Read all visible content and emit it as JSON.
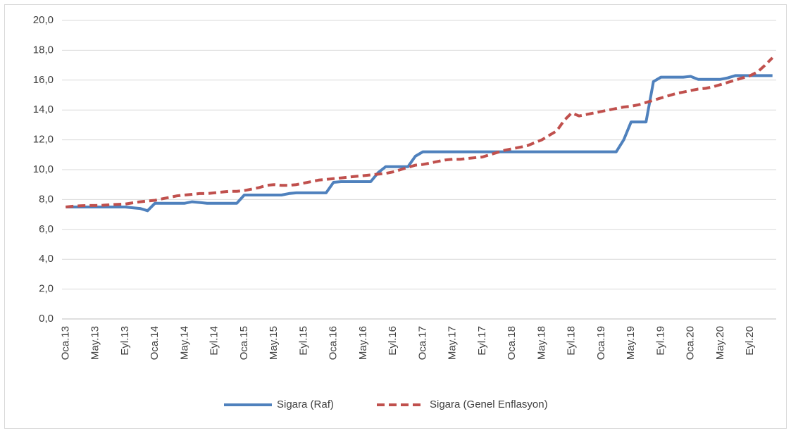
{
  "chart_data": {
    "type": "line",
    "categories": [
      "Oca.13",
      null,
      null,
      null,
      "May.13",
      null,
      null,
      null,
      "Eyl.13",
      null,
      null,
      null,
      "Oca.14",
      null,
      null,
      null,
      "May.14",
      null,
      null,
      null,
      "Eyl.14",
      null,
      null,
      null,
      "Oca.15",
      null,
      null,
      null,
      "May.15",
      null,
      null,
      null,
      "Eyl.15",
      null,
      null,
      null,
      "Oca.16",
      null,
      null,
      null,
      "May.16",
      null,
      null,
      null,
      "Eyl.16",
      null,
      null,
      null,
      "Oca.17",
      null,
      null,
      null,
      "May.17",
      null,
      null,
      null,
      "Eyl.17",
      null,
      null,
      null,
      "Oca.18",
      null,
      null,
      null,
      "May.18",
      null,
      null,
      null,
      "Eyl.18",
      null,
      null,
      null,
      "Oca.19",
      null,
      null,
      null,
      "May.19",
      null,
      null,
      null,
      "Eyl.19",
      null,
      null,
      null,
      "Oca.20",
      null,
      null,
      null,
      "May.20",
      null,
      null,
      null,
      "Eyl.20",
      null,
      null,
      null
    ],
    "series": [
      {
        "name": "Sigara (Raf)",
        "color": "#4f81bd",
        "dash": false,
        "values": [
          7.5,
          7.5,
          7.5,
          7.5,
          7.5,
          7.5,
          7.5,
          7.5,
          7.5,
          7.45,
          7.4,
          7.25,
          7.75,
          7.75,
          7.75,
          7.75,
          7.75,
          7.85,
          7.8,
          7.75,
          7.75,
          7.75,
          7.75,
          7.75,
          8.3,
          8.3,
          8.3,
          8.3,
          8.3,
          8.3,
          8.4,
          8.45,
          8.45,
          8.45,
          8.45,
          8.45,
          9.15,
          9.2,
          9.2,
          9.2,
          9.2,
          9.2,
          9.8,
          10.2,
          10.2,
          10.2,
          10.2,
          10.9,
          11.2,
          11.2,
          11.2,
          11.2,
          11.2,
          11.2,
          11.2,
          11.2,
          11.2,
          11.2,
          11.2,
          11.2,
          11.2,
          11.2,
          11.2,
          11.2,
          11.2,
          11.2,
          11.2,
          11.2,
          11.2,
          11.2,
          11.2,
          11.2,
          11.2,
          11.2,
          11.2,
          12.0,
          13.2,
          13.2,
          13.2,
          15.9,
          16.2,
          16.2,
          16.2,
          16.2,
          16.25,
          16.05,
          16.05,
          16.05,
          16.05,
          16.15,
          16.3,
          16.3,
          16.3,
          16.3,
          16.3,
          16.3
        ]
      },
      {
        "name": "Sigara (Genel Enflasyon)",
        "color": "#c0504d",
        "dash": true,
        "values": [
          7.5,
          7.55,
          7.58,
          7.6,
          7.6,
          7.62,
          7.65,
          7.68,
          7.7,
          7.78,
          7.85,
          7.9,
          7.95,
          8.05,
          8.15,
          8.25,
          8.3,
          8.35,
          8.4,
          8.4,
          8.45,
          8.5,
          8.55,
          8.55,
          8.6,
          8.7,
          8.8,
          8.95,
          9.0,
          8.95,
          8.95,
          9.0,
          9.1,
          9.2,
          9.3,
          9.35,
          9.4,
          9.45,
          9.5,
          9.55,
          9.6,
          9.65,
          9.7,
          9.75,
          9.85,
          10.0,
          10.15,
          10.3,
          10.35,
          10.45,
          10.55,
          10.65,
          10.7,
          10.7,
          10.75,
          10.8,
          10.85,
          11.0,
          11.15,
          11.3,
          11.4,
          11.5,
          11.6,
          11.8,
          12.0,
          12.3,
          12.6,
          13.3,
          13.8,
          13.6,
          13.7,
          13.8,
          13.9,
          14.0,
          14.1,
          14.2,
          14.25,
          14.35,
          14.5,
          14.65,
          14.8,
          14.95,
          15.1,
          15.2,
          15.3,
          15.4,
          15.45,
          15.55,
          15.7,
          15.85,
          16.0,
          16.15,
          16.3,
          16.55,
          17.0,
          17.5
        ]
      }
    ],
    "ylim": [
      0,
      20
    ],
    "yticks": [
      {
        "value": 0,
        "label": "0,0"
      },
      {
        "value": 2,
        "label": "2,0"
      },
      {
        "value": 4,
        "label": "4,0"
      },
      {
        "value": 6,
        "label": "6,0"
      },
      {
        "value": 8,
        "label": "8,0"
      },
      {
        "value": 10,
        "label": "10,0"
      },
      {
        "value": 12,
        "label": "12,0"
      },
      {
        "value": 14,
        "label": "14,0"
      },
      {
        "value": 16,
        "label": "16,0"
      },
      {
        "value": 18,
        "label": "18,0"
      },
      {
        "value": 20,
        "label": "20,0"
      }
    ],
    "grid": true,
    "legend": "bottom"
  }
}
